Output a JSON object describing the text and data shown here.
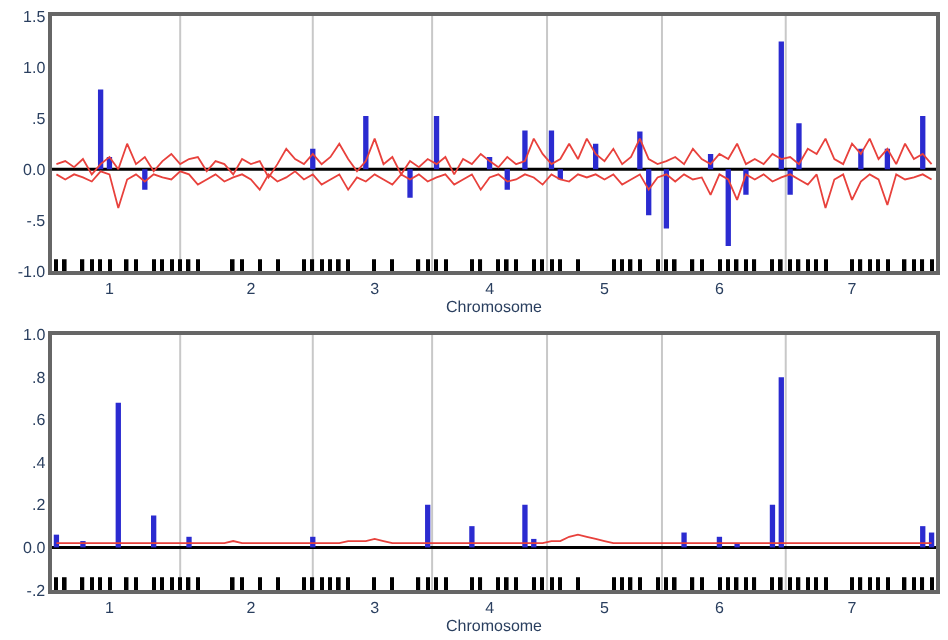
{
  "chart_data": [
    {
      "type": "bar",
      "xlabel": "Chromosome",
      "ylim": [
        -1,
        1.5
      ],
      "categories": [
        null,
        null,
        null,
        null,
        null,
        null,
        "1",
        null,
        null,
        null,
        null,
        null,
        null,
        null,
        null,
        null,
        null,
        null,
        null,
        null,
        null,
        null,
        "2",
        null,
        null,
        null,
        null,
        null,
        null,
        null,
        null,
        null,
        null,
        null,
        null,
        null,
        "3",
        null,
        null,
        null,
        null,
        null,
        null,
        null,
        null,
        null,
        null,
        null,
        null,
        "4",
        null,
        null,
        null,
        null,
        null,
        null,
        null,
        null,
        null,
        null,
        null,
        null,
        "5",
        null,
        null,
        null,
        null,
        null,
        null,
        null,
        null,
        null,
        null,
        null,
        null,
        "6",
        null,
        null,
        null,
        null,
        null,
        null,
        null,
        null,
        null,
        null,
        null,
        null,
        null,
        null,
        "7",
        null,
        null,
        null,
        null,
        null,
        null,
        null,
        null,
        null
      ],
      "yticks": [
        {
          "value": -1,
          "label": "-1.0"
        },
        {
          "value": -0.5,
          "label": "-.5"
        },
        {
          "value": 0,
          "label": "0.0"
        },
        {
          "value": 0.5,
          "label": ".5"
        },
        {
          "value": 1,
          "label": "1.0"
        },
        {
          "value": 1.5,
          "label": "1.5"
        }
      ],
      "grid": false,
      "ref_lines": [
        {
          "axis": "y",
          "value": 0,
          "color": "#000000"
        }
      ],
      "series": [
        {
          "type": "line",
          "color": "#e8413c",
          "values": [
            0.05,
            0.08,
            0.02,
            0.1,
            -0.05,
            0.05,
            0.12,
            0.0,
            0.25,
            0.05,
            0.12,
            -0.02,
            0.08,
            0.15,
            0.05,
            0.1,
            0.12,
            -0.02,
            0.08,
            0.05,
            -0.05,
            0.1,
            0.05,
            0.08,
            -0.08,
            0.05,
            0.2,
            0.1,
            0.05,
            0.15,
            0.05,
            0.12,
            0.25,
            0.1,
            -0.02,
            0.08,
            0.3,
            0.05,
            0.12,
            -0.05,
            0.08,
            0.02,
            0.1,
            0.05,
            0.12,
            -0.05,
            0.1,
            0.05,
            0.15,
            0.08,
            0.02,
            0.12,
            0.05,
            0.08,
            0.3,
            0.15,
            0.05,
            0.1,
            0.25,
            0.1,
            0.3,
            0.15,
            0.08,
            0.2,
            0.05,
            0.12,
            0.3,
            0.1,
            0.05,
            0.08,
            0.12,
            0.05,
            0.2,
            0.1,
            0.05,
            0.15,
            0.1,
            0.25,
            0.05,
            0.1,
            0.05,
            0.15,
            0.1,
            0.12,
            0.05,
            0.2,
            0.15,
            0.3,
            0.1,
            0.05,
            0.25,
            0.15,
            0.3,
            0.1,
            0.2,
            0.05,
            0.25,
            0.1,
            0.15,
            0.05
          ]
        },
        {
          "type": "line",
          "color": "#e8413c",
          "values": [
            -0.05,
            -0.1,
            -0.05,
            -0.08,
            -0.12,
            -0.02,
            -0.05,
            -0.38,
            -0.1,
            -0.05,
            -0.12,
            -0.05,
            -0.08,
            -0.1,
            -0.02,
            -0.05,
            -0.15,
            -0.1,
            -0.05,
            -0.12,
            -0.08,
            -0.05,
            -0.1,
            -0.2,
            -0.05,
            -0.12,
            -0.08,
            -0.02,
            -0.1,
            -0.05,
            -0.15,
            -0.1,
            -0.05,
            -0.2,
            -0.08,
            -0.12,
            -0.05,
            -0.1,
            -0.15,
            -0.05,
            -0.1,
            -0.05,
            -0.12,
            -0.08,
            -0.05,
            -0.15,
            -0.1,
            -0.05,
            -0.2,
            -0.08,
            -0.05,
            -0.12,
            -0.1,
            -0.05,
            -0.08,
            -0.15,
            -0.05,
            -0.1,
            -0.12,
            -0.05,
            -0.08,
            -0.05,
            -0.1,
            -0.05,
            -0.15,
            -0.1,
            -0.05,
            -0.2,
            -0.08,
            -0.05,
            -0.12,
            -0.05,
            -0.1,
            -0.08,
            -0.25,
            -0.05,
            -0.1,
            -0.3,
            -0.05,
            -0.1,
            -0.05,
            -0.12,
            -0.08,
            -0.05,
            -0.1,
            -0.15,
            -0.05,
            -0.38,
            -0.1,
            -0.05,
            -0.3,
            -0.12,
            -0.05,
            -0.1,
            -0.35,
            -0.05,
            -0.1,
            -0.08,
            -0.05,
            -0.1
          ]
        },
        {
          "color": "#2b2bd0",
          "values": [
            null,
            null,
            null,
            null,
            null,
            0.78,
            0.12,
            null,
            null,
            null,
            -0.2,
            null,
            null,
            null,
            null,
            null,
            null,
            null,
            null,
            null,
            null,
            null,
            null,
            null,
            null,
            null,
            null,
            null,
            null,
            0.2,
            null,
            null,
            null,
            null,
            null,
            0.52,
            null,
            null,
            null,
            null,
            -0.28,
            null,
            null,
            0.52,
            null,
            null,
            null,
            null,
            null,
            0.12,
            null,
            -0.2,
            null,
            0.38,
            null,
            null,
            0.38,
            -0.1,
            null,
            null,
            null,
            0.25,
            null,
            null,
            null,
            null,
            0.37,
            -0.45,
            null,
            -0.58,
            null,
            null,
            null,
            null,
            0.15,
            null,
            -0.75,
            null,
            -0.25,
            null,
            null,
            null,
            1.25,
            -0.25,
            0.45,
            null,
            null,
            null,
            null,
            null,
            null,
            0.2,
            null,
            null,
            0.2,
            null,
            null,
            null,
            0.52,
            null
          ]
        },
        {
          "color": "#000000",
          "base": [
            -1,
            -1,
            null,
            -1,
            -1,
            -1,
            -1,
            null,
            -1,
            -1,
            null,
            -1,
            -1,
            -1,
            -1,
            -1,
            -1,
            null,
            null,
            null,
            -1,
            -1,
            null,
            -1,
            null,
            -1,
            null,
            null,
            -1,
            -1,
            -1,
            -1,
            -1,
            -1,
            null,
            null,
            -1,
            null,
            -1,
            null,
            null,
            -1,
            -1,
            -1,
            -1,
            null,
            null,
            -1,
            -1,
            null,
            -1,
            -1,
            -1,
            null,
            -1,
            -1,
            -1,
            -1,
            null,
            -1,
            null,
            null,
            null,
            -1,
            -1,
            -1,
            -1,
            null,
            -1,
            -1,
            -1,
            null,
            -1,
            -1,
            null,
            -1,
            -1,
            -1,
            -1,
            -1,
            null,
            -1,
            -1,
            -1,
            -1,
            -1,
            -1,
            -1,
            null,
            null,
            -1,
            -1,
            -1,
            -1,
            -1,
            null,
            -1,
            -1,
            -1,
            -1
          ],
          "values": [
            0.12,
            0.12,
            null,
            0.12,
            0.12,
            0.12,
            0.12,
            null,
            0.12,
            0.12,
            null,
            0.12,
            0.12,
            0.12,
            0.12,
            0.12,
            0.12,
            null,
            null,
            null,
            0.12,
            0.12,
            null,
            0.12,
            null,
            0.12,
            null,
            null,
            0.12,
            0.12,
            0.12,
            0.12,
            0.12,
            0.12,
            null,
            null,
            0.12,
            null,
            0.12,
            null,
            null,
            0.12,
            0.12,
            0.12,
            0.12,
            null,
            null,
            0.12,
            0.12,
            null,
            0.12,
            0.12,
            0.12,
            null,
            0.12,
            0.12,
            0.12,
            0.12,
            null,
            0.12,
            null,
            null,
            null,
            0.12,
            0.12,
            0.12,
            0.12,
            null,
            0.12,
            0.12,
            0.12,
            null,
            0.12,
            0.12,
            null,
            0.12,
            0.12,
            0.12,
            0.12,
            0.12,
            null,
            0.12,
            0.12,
            0.12,
            0.12,
            0.12,
            0.12,
            0.12,
            null,
            null,
            0.12,
            0.12,
            0.12,
            0.12,
            0.12,
            null,
            0.12,
            0.12,
            0.12,
            0.12
          ]
        }
      ]
    },
    {
      "type": "bar",
      "xlabel": "Chromosome",
      "ylim": [
        -0.2,
        1.0
      ],
      "categories": [
        null,
        null,
        null,
        null,
        null,
        null,
        "1",
        null,
        null,
        null,
        null,
        null,
        null,
        null,
        null,
        null,
        null,
        null,
        null,
        null,
        null,
        null,
        "2",
        null,
        null,
        null,
        null,
        null,
        null,
        null,
        null,
        null,
        null,
        null,
        null,
        null,
        "3",
        null,
        null,
        null,
        null,
        null,
        null,
        null,
        null,
        null,
        null,
        null,
        null,
        "4",
        null,
        null,
        null,
        null,
        null,
        null,
        null,
        null,
        null,
        null,
        null,
        null,
        "5",
        null,
        null,
        null,
        null,
        null,
        null,
        null,
        null,
        null,
        null,
        null,
        null,
        "6",
        null,
        null,
        null,
        null,
        null,
        null,
        null,
        null,
        null,
        null,
        null,
        null,
        null,
        null,
        "7",
        null,
        null,
        null,
        null,
        null,
        null,
        null,
        null,
        null
      ],
      "yticks": [
        {
          "value": -0.2,
          "label": "-.2"
        },
        {
          "value": 0,
          "label": "0.0"
        },
        {
          "value": 0.2,
          "label": ".2"
        },
        {
          "value": 0.4,
          "label": ".4"
        },
        {
          "value": 0.6,
          "label": ".6"
        },
        {
          "value": 0.8,
          "label": ".8"
        },
        {
          "value": 1.0,
          "label": "1.0"
        }
      ],
      "grid": false,
      "ref_lines": [
        {
          "axis": "y",
          "value": 0,
          "color": "#000000"
        }
      ],
      "series": [
        {
          "type": "line",
          "color": "#e8413c",
          "values": [
            0.02,
            0.02,
            0.02,
            0.02,
            0.02,
            0.02,
            0.02,
            0.02,
            0.02,
            0.02,
            0.02,
            0.02,
            0.02,
            0.02,
            0.02,
            0.02,
            0.02,
            0.02,
            0.02,
            0.02,
            0.03,
            0.02,
            0.02,
            0.02,
            0.02,
            0.02,
            0.02,
            0.02,
            0.02,
            0.02,
            0.02,
            0.02,
            0.02,
            0.03,
            0.03,
            0.03,
            0.04,
            0.03,
            0.02,
            0.02,
            0.02,
            0.02,
            0.02,
            0.02,
            0.02,
            0.02,
            0.02,
            0.02,
            0.02,
            0.02,
            0.02,
            0.02,
            0.02,
            0.02,
            0.02,
            0.02,
            0.03,
            0.03,
            0.05,
            0.06,
            0.05,
            0.04,
            0.03,
            0.02,
            0.02,
            0.02,
            0.02,
            0.02,
            0.02,
            0.02,
            0.02,
            0.02,
            0.02,
            0.02,
            0.02,
            0.02,
            0.02,
            0.02,
            0.02,
            0.02,
            0.02,
            0.02,
            0.02,
            0.02,
            0.02,
            0.02,
            0.02,
            0.02,
            0.02,
            0.02,
            0.02,
            0.02,
            0.02,
            0.02,
            0.02,
            0.02,
            0.02,
            0.02,
            0.02,
            0.02
          ]
        },
        {
          "color": "#2b2bd0",
          "values": [
            0.06,
            null,
            null,
            0.03,
            null,
            null,
            null,
            0.68,
            null,
            null,
            null,
            0.15,
            null,
            null,
            null,
            0.05,
            null,
            null,
            null,
            null,
            null,
            null,
            null,
            null,
            null,
            null,
            null,
            null,
            null,
            0.05,
            null,
            null,
            null,
            null,
            null,
            null,
            null,
            null,
            null,
            null,
            null,
            null,
            0.2,
            null,
            null,
            null,
            null,
            0.1,
            null,
            null,
            null,
            null,
            null,
            0.2,
            0.04,
            null,
            null,
            null,
            null,
            null,
            null,
            null,
            null,
            null,
            null,
            null,
            null,
            null,
            null,
            null,
            null,
            0.07,
            null,
            null,
            null,
            0.05,
            null,
            0.02,
            null,
            null,
            null,
            0.2,
            0.8,
            null,
            null,
            null,
            null,
            null,
            null,
            null,
            null,
            null,
            null,
            null,
            null,
            null,
            null,
            null,
            0.1,
            0.07
          ]
        },
        {
          "color": "#000000",
          "base": [
            -0.2,
            -0.2,
            null,
            -0.2,
            -0.2,
            -0.2,
            -0.2,
            null,
            -0.2,
            -0.2,
            null,
            -0.2,
            -0.2,
            -0.2,
            -0.2,
            -0.2,
            -0.2,
            null,
            null,
            null,
            -0.2,
            -0.2,
            null,
            -0.2,
            null,
            -0.2,
            null,
            null,
            -0.2,
            -0.2,
            -0.2,
            -0.2,
            -0.2,
            -0.2,
            null,
            null,
            -0.2,
            null,
            -0.2,
            null,
            null,
            -0.2,
            -0.2,
            -0.2,
            -0.2,
            null,
            null,
            -0.2,
            -0.2,
            null,
            -0.2,
            -0.2,
            -0.2,
            null,
            -0.2,
            -0.2,
            -0.2,
            -0.2,
            null,
            -0.2,
            null,
            null,
            null,
            -0.2,
            -0.2,
            -0.2,
            -0.2,
            null,
            -0.2,
            -0.2,
            -0.2,
            null,
            -0.2,
            -0.2,
            null,
            -0.2,
            -0.2,
            -0.2,
            -0.2,
            -0.2,
            null,
            -0.2,
            -0.2,
            -0.2,
            -0.2,
            -0.2,
            -0.2,
            -0.2,
            null,
            null,
            -0.2,
            -0.2,
            -0.2,
            -0.2,
            -0.2,
            null,
            -0.2,
            -0.2,
            -0.2,
            -0.2
          ],
          "values": [
            0.06,
            0.06,
            null,
            0.06,
            0.06,
            0.06,
            0.06,
            null,
            0.06,
            0.06,
            null,
            0.06,
            0.06,
            0.06,
            0.06,
            0.06,
            0.06,
            null,
            null,
            null,
            0.06,
            0.06,
            null,
            0.06,
            null,
            0.06,
            null,
            null,
            0.06,
            0.06,
            0.06,
            0.06,
            0.06,
            0.06,
            null,
            null,
            0.06,
            null,
            0.06,
            null,
            null,
            0.06,
            0.06,
            0.06,
            0.06,
            null,
            null,
            0.06,
            0.06,
            null,
            0.06,
            0.06,
            0.06,
            null,
            0.06,
            0.06,
            0.06,
            0.06,
            null,
            0.06,
            null,
            null,
            null,
            0.06,
            0.06,
            0.06,
            0.06,
            null,
            0.06,
            0.06,
            0.06,
            null,
            0.06,
            0.06,
            null,
            0.06,
            0.06,
            0.06,
            0.06,
            0.06,
            null,
            0.06,
            0.06,
            0.06,
            0.06,
            0.06,
            0.06,
            0.06,
            null,
            null,
            0.06,
            0.06,
            0.06,
            0.06,
            0.06,
            null,
            0.06,
            0.06,
            0.06,
            0.06
          ]
        }
      ]
    }
  ]
}
